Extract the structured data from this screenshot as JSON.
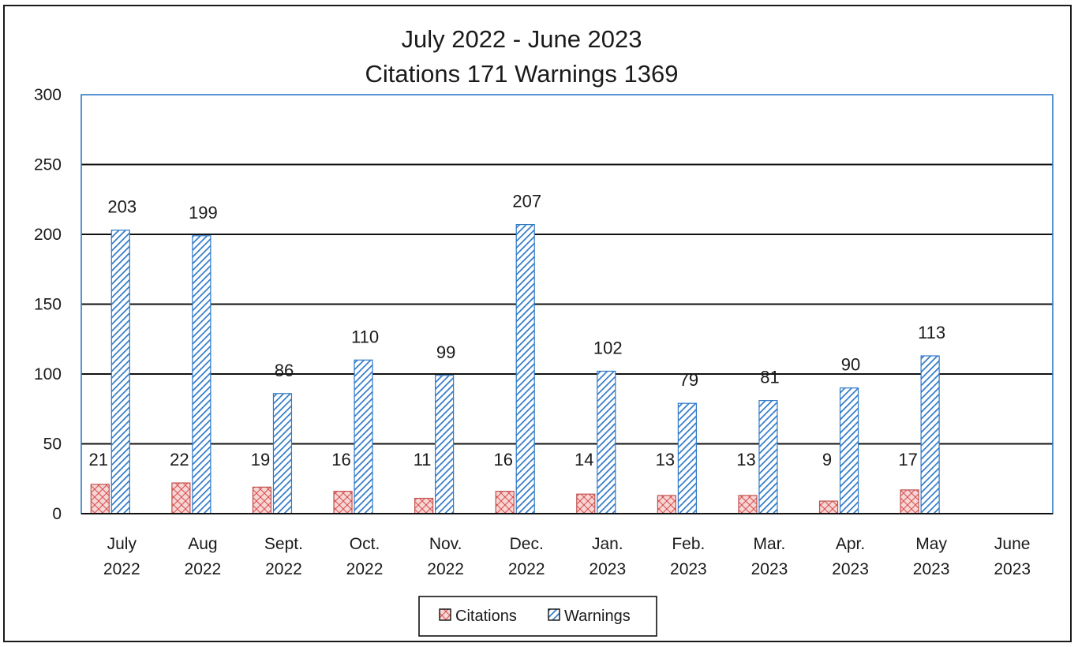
{
  "chart_data": {
    "type": "bar",
    "title_lines": [
      "July 2022 - June 2023",
      "Citations 171 Warnings 1369"
    ],
    "categories": [
      [
        "July",
        "2022"
      ],
      [
        "Aug",
        "2022"
      ],
      [
        "Sept.",
        "2022"
      ],
      [
        "Oct.",
        "2022"
      ],
      [
        "Nov.",
        "2022"
      ],
      [
        "Dec.",
        "2022"
      ],
      [
        "Jan.",
        "2023"
      ],
      [
        "Feb.",
        "2023"
      ],
      [
        "Mar.",
        "2023"
      ],
      [
        "Apr.",
        "2023"
      ],
      [
        "May",
        "2023"
      ],
      [
        "June",
        "2023"
      ]
    ],
    "series": [
      {
        "name": "Citations",
        "values": [
          21,
          22,
          19,
          16,
          11,
          16,
          14,
          13,
          13,
          9,
          17,
          null
        ],
        "color": "#f2c4c4",
        "pattern": "crosshatch",
        "pattern_color": "#d9534f"
      },
      {
        "name": "Warnings",
        "values": [
          203,
          199,
          86,
          110,
          99,
          207,
          102,
          79,
          81,
          90,
          113,
          null
        ],
        "color": "#ffffff",
        "pattern": "diagonal",
        "pattern_color": "#2f79c7"
      }
    ],
    "ylim": [
      0,
      300
    ],
    "yticks": [
      0,
      50,
      100,
      150,
      200,
      250,
      300
    ],
    "xlabel": "",
    "ylabel": "",
    "grid": true,
    "plot_border_color": "#2f79c7",
    "legend_position": "bottom"
  }
}
